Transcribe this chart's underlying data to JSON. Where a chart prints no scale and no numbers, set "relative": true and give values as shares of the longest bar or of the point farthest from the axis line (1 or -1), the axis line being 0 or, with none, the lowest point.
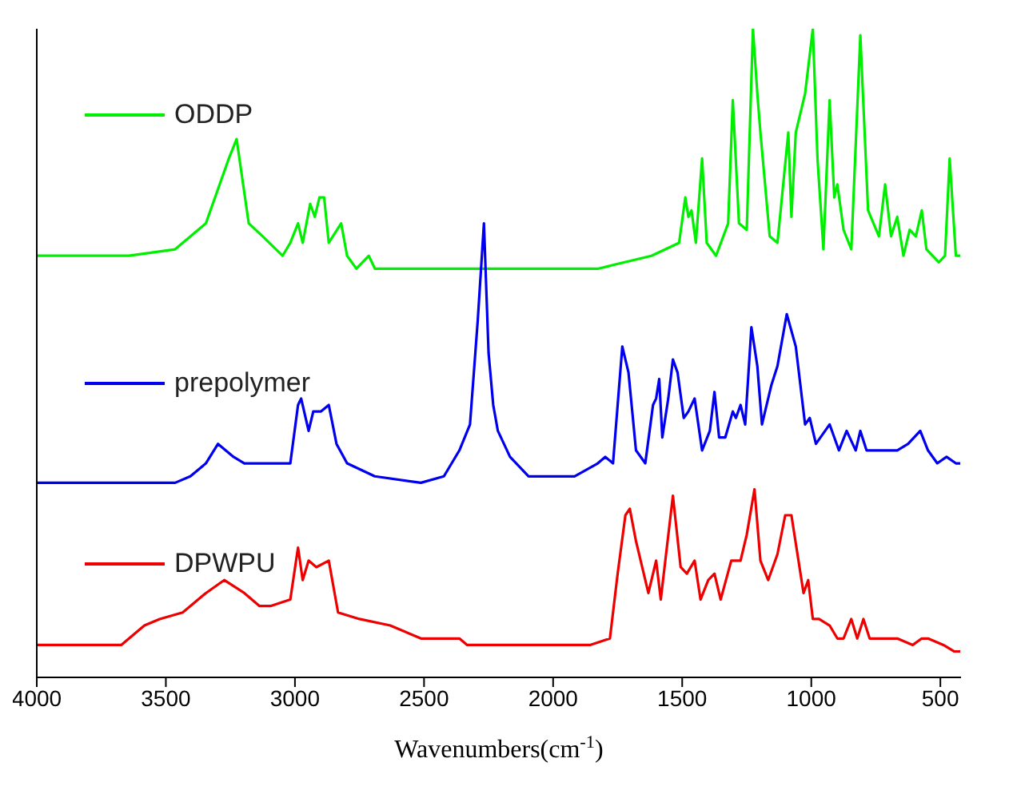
{
  "chart_data": {
    "type": "line",
    "relative": true,
    "xlabel": "Wavenumbers(cm$^{-1}$)",
    "xlim": [
      4000,
      420
    ],
    "xticks": [
      4000,
      3500,
      3000,
      2500,
      2000,
      1500,
      1000,
      500
    ],
    "legend": "top left",
    "grid": false,
    "marker": "none",
    "line_style": "solid",
    "series": [
      {
        "name": "ODDP",
        "color": "#00ee00",
        "x": [
          4000,
          3643,
          3464,
          3345,
          3256,
          3226,
          3179,
          3125,
          3048,
          3018,
          2988,
          2970,
          2941,
          2923,
          2905,
          2887,
          2869,
          2821,
          2798,
          2762,
          2714,
          2690,
          2393,
          2036,
          1827,
          1619,
          1512,
          1488,
          1476,
          1464,
          1447,
          1423,
          1405,
          1369,
          1322,
          1304,
          1280,
          1250,
          1226,
          1209,
          1197,
          1161,
          1131,
          1089,
          1077,
          1060,
          1024,
          994,
          976,
          953,
          929,
          911,
          899,
          875,
          845,
          810,
          780,
          738,
          714,
          691,
          667,
          643,
          619,
          595,
          572,
          554,
          506,
          482,
          464,
          440,
          423
        ],
        "values": [
          0.65,
          0.65,
          0.66,
          0.7,
          0.8,
          0.83,
          0.7,
          0.68,
          0.65,
          0.67,
          0.7,
          0.67,
          0.73,
          0.71,
          0.74,
          0.74,
          0.67,
          0.7,
          0.65,
          0.63,
          0.65,
          0.63,
          0.63,
          0.63,
          0.63,
          0.65,
          0.67,
          0.74,
          0.71,
          0.72,
          0.67,
          0.8,
          0.67,
          0.65,
          0.7,
          0.89,
          0.7,
          0.69,
          1,
          0.9,
          0.84,
          0.68,
          0.67,
          0.84,
          0.71,
          0.84,
          0.9,
          1,
          0.8,
          0.66,
          0.89,
          0.74,
          0.76,
          0.69,
          0.66,
          0.99,
          0.72,
          0.68,
          0.76,
          0.68,
          0.71,
          0.65,
          0.69,
          0.68,
          0.72,
          0.66,
          0.64,
          0.65,
          0.8,
          0.65,
          0.65
        ]
      },
      {
        "name": "prepolymer",
        "color": "#0000ee",
        "x": [
          4000,
          3464,
          3405,
          3345,
          3298,
          3238,
          3196,
          3167,
          3018,
          2988,
          2976,
          2947,
          2929,
          2899,
          2869,
          2839,
          2798,
          2691,
          2512,
          2423,
          2363,
          2322,
          2292,
          2268,
          2250,
          2232,
          2214,
          2167,
          2095,
          1917,
          1827,
          1798,
          1768,
          1750,
          1732,
          1708,
          1679,
          1643,
          1613,
          1601,
          1589,
          1577,
          1554,
          1536,
          1518,
          1494,
          1476,
          1452,
          1423,
          1393,
          1375,
          1357,
          1333,
          1304,
          1292,
          1274,
          1256,
          1232,
          1209,
          1191,
          1155,
          1131,
          1095,
          1060,
          1024,
          1006,
          982,
          929,
          893,
          863,
          828,
          810,
          786,
          750,
          714,
          667,
          625,
          578,
          548,
          512,
          476,
          440,
          423
        ],
        "values": [
          0.3,
          0.3,
          0.31,
          0.33,
          0.36,
          0.34,
          0.33,
          0.33,
          0.33,
          0.42,
          0.43,
          0.38,
          0.41,
          0.41,
          0.42,
          0.36,
          0.33,
          0.31,
          0.3,
          0.31,
          0.35,
          0.39,
          0.55,
          0.7,
          0.5,
          0.42,
          0.38,
          0.34,
          0.31,
          0.31,
          0.33,
          0.34,
          0.33,
          0.42,
          0.51,
          0.47,
          0.35,
          0.33,
          0.42,
          0.43,
          0.46,
          0.37,
          0.43,
          0.49,
          0.47,
          0.4,
          0.41,
          0.43,
          0.35,
          0.38,
          0.44,
          0.37,
          0.37,
          0.41,
          0.4,
          0.42,
          0.39,
          0.54,
          0.48,
          0.39,
          0.45,
          0.48,
          0.56,
          0.51,
          0.39,
          0.4,
          0.36,
          0.39,
          0.35,
          0.38,
          0.35,
          0.38,
          0.35,
          0.35,
          0.35,
          0.35,
          0.36,
          0.38,
          0.35,
          0.33,
          0.34,
          0.33,
          0.33
        ]
      },
      {
        "name": "DPWPU",
        "color": "#ee0000",
        "x": [
          4000,
          3673,
          3583,
          3524,
          3435,
          3345,
          3274,
          3196,
          3137,
          3095,
          3018,
          2988,
          2970,
          2947,
          2917,
          2869,
          2833,
          2750,
          2631,
          2512,
          2393,
          2363,
          2333,
          2274,
          2095,
          1857,
          1780,
          1750,
          1720,
          1703,
          1679,
          1631,
          1601,
          1583,
          1536,
          1506,
          1482,
          1452,
          1429,
          1399,
          1375,
          1351,
          1310,
          1274,
          1250,
          1220,
          1197,
          1167,
          1131,
          1101,
          1077,
          1030,
          1012,
          994,
          970,
          929,
          899,
          875,
          845,
          822,
          798,
          774,
          726,
          667,
          607,
          572,
          548,
          488,
          446,
          423
        ],
        "values": [
          0.05,
          0.05,
          0.08,
          0.09,
          0.1,
          0.13,
          0.15,
          0.13,
          0.11,
          0.11,
          0.12,
          0.2,
          0.15,
          0.18,
          0.17,
          0.18,
          0.1,
          0.09,
          0.08,
          0.06,
          0.06,
          0.06,
          0.05,
          0.05,
          0.05,
          0.05,
          0.06,
          0.16,
          0.25,
          0.26,
          0.21,
          0.13,
          0.18,
          0.12,
          0.28,
          0.17,
          0.16,
          0.18,
          0.12,
          0.15,
          0.16,
          0.12,
          0.18,
          0.18,
          0.22,
          0.29,
          0.18,
          0.15,
          0.19,
          0.25,
          0.25,
          0.13,
          0.15,
          0.09,
          0.09,
          0.08,
          0.06,
          0.06,
          0.09,
          0.06,
          0.09,
          0.06,
          0.06,
          0.06,
          0.05,
          0.06,
          0.06,
          0.05,
          0.04,
          0.04
        ]
      }
    ]
  }
}
